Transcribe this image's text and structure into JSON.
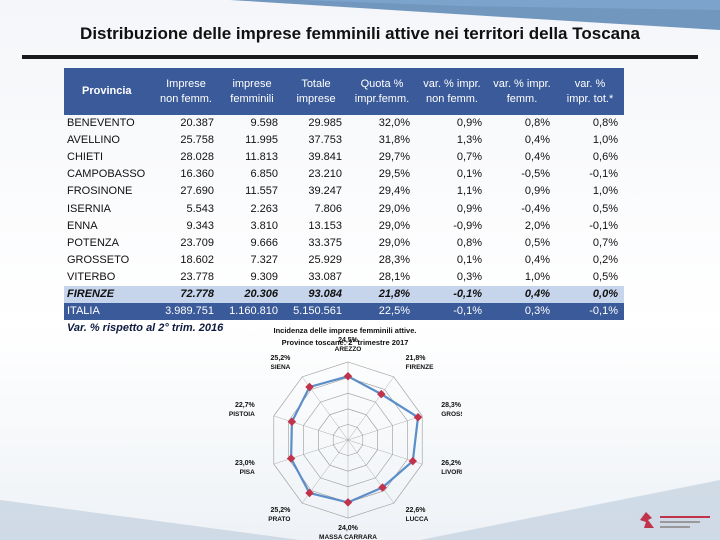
{
  "slide": {
    "title": "Distribuzione delle imprese femminili attive nei territori della Toscana"
  },
  "table": {
    "headers": [
      [
        "Provincia",
        ""
      ],
      [
        "Imprese",
        "non femm."
      ],
      [
        "imprese",
        "femminili"
      ],
      [
        "Totale",
        "imprese"
      ],
      [
        "Quota %",
        "impr.femm."
      ],
      [
        "var. % impr.",
        "non femm."
      ],
      [
        "var. % impr.",
        "femm."
      ],
      [
        "var. %",
        "impr. tot.*"
      ]
    ],
    "rows": [
      [
        "BENEVENTO",
        "20.387",
        "9.598",
        "29.985",
        "32,0%",
        "0,9%",
        "0,8%",
        "0,8%"
      ],
      [
        "AVELLINO",
        "25.758",
        "11.995",
        "37.753",
        "31,8%",
        "1,3%",
        "0,4%",
        "1,0%"
      ],
      [
        "CHIETI",
        "28.028",
        "11.813",
        "39.841",
        "29,7%",
        "0,7%",
        "0,4%",
        "0,6%"
      ],
      [
        "CAMPOBASSO",
        "16.360",
        "6.850",
        "23.210",
        "29,5%",
        "0,1%",
        "-0,5%",
        "-0,1%"
      ],
      [
        "FROSINONE",
        "27.690",
        "11.557",
        "39.247",
        "29,4%",
        "1,1%",
        "0,9%",
        "1,0%"
      ],
      [
        "ISERNIA",
        "5.543",
        "2.263",
        "7.806",
        "29,0%",
        "0,9%",
        "-0,4%",
        "0,5%"
      ],
      [
        "ENNA",
        "9.343",
        "3.810",
        "13.153",
        "29,0%",
        "-0,9%",
        "2,0%",
        "-0,1%"
      ],
      [
        "POTENZA",
        "23.709",
        "9.666",
        "33.375",
        "29,0%",
        "0,8%",
        "0,5%",
        "0,7%"
      ],
      [
        "GROSSETO",
        "18.602",
        "7.327",
        "25.929",
        "28,3%",
        "0,1%",
        "0,4%",
        "0,2%"
      ],
      [
        "VITERBO",
        "23.778",
        "9.309",
        "33.087",
        "28,1%",
        "0,3%",
        "1,0%",
        "0,5%"
      ]
    ],
    "highlight_row": [
      "FIRENZE",
      "72.778",
      "20.306",
      "93.084",
      "21,8%",
      "-0,1%",
      "0,4%",
      "0,0%"
    ],
    "total_row": [
      "ITALIA",
      "3.989.751",
      "1.160.810",
      "5.150.561",
      "22,5%",
      "-0,1%",
      "0,3%",
      "-0,1%"
    ],
    "note": "Var. % rispetto al 2° trim. 2016"
  },
  "chart_data": {
    "type": "radar",
    "title": "Incidenza delle imprese femminili attive.",
    "subtitle": "Province toscane: 2° trimestre 2017",
    "categories": [
      "AREZZO",
      "FIRENZE",
      "GROSSETO",
      "LIVORNO",
      "LUCCA",
      "MASSA CARRARA",
      "PRATO",
      "PISA",
      "PISTOIA",
      "SIENA"
    ],
    "values": [
      24.5,
      21.8,
      28.3,
      26.2,
      22.6,
      24.0,
      25.2,
      23.0,
      22.7,
      25.2
    ],
    "value_labels": [
      "24,5%",
      "21,8%",
      "28,3%",
      "26,2%",
      "22,6%",
      "24,0%",
      "25,2%",
      "23,0%",
      "22,7%",
      "25,2%"
    ],
    "range": [
      0,
      30
    ],
    "colors": {
      "line": "#5b8dc9",
      "marker": "#c0334a",
      "grid": "#9a9a9a"
    }
  },
  "colors": {
    "header_bg": "#3a5a99",
    "highlight_bg": "#c6d4ec",
    "rule": "#1a1a1a"
  }
}
